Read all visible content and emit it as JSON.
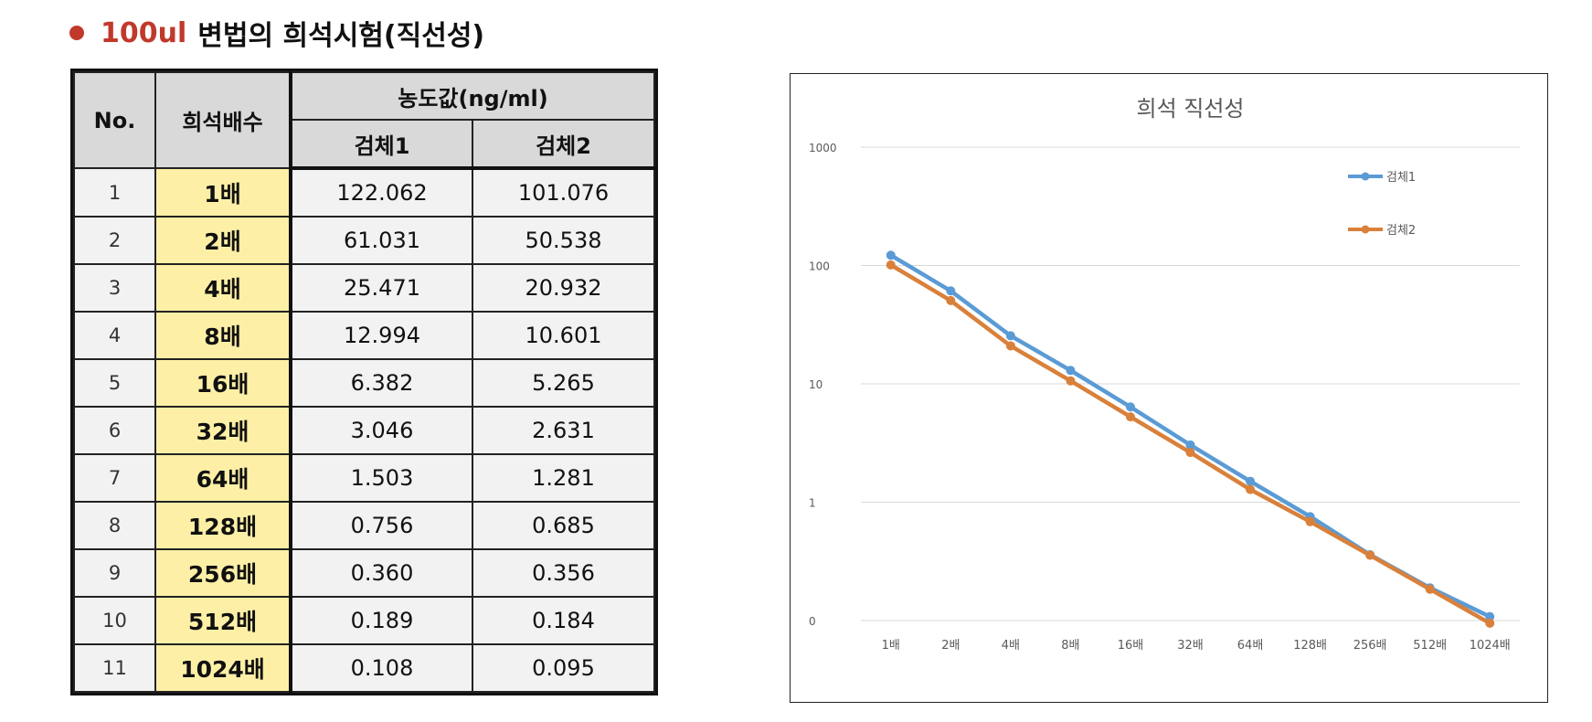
{
  "heading": {
    "highlight": "100ul",
    "rest": "변법의 희석시험(직선성)"
  },
  "table": {
    "col_no": "No.",
    "col_dilution": "희석배수",
    "col_conc": "농도값(ng/ml)",
    "col_s1": "검체1",
    "col_s2": "검체2",
    "rows": [
      {
        "no": "1",
        "dilution": "1배",
        "s1": "122.062",
        "s2": "101.076"
      },
      {
        "no": "2",
        "dilution": "2배",
        "s1": "61.031",
        "s2": "50.538"
      },
      {
        "no": "3",
        "dilution": "4배",
        "s1": "25.471",
        "s2": "20.932"
      },
      {
        "no": "4",
        "dilution": "8배",
        "s1": "12.994",
        "s2": "10.601"
      },
      {
        "no": "5",
        "dilution": "16배",
        "s1": "6.382",
        "s2": "5.265"
      },
      {
        "no": "6",
        "dilution": "32배",
        "s1": "3.046",
        "s2": "2.631"
      },
      {
        "no": "7",
        "dilution": "64배",
        "s1": "1.503",
        "s2": "1.281"
      },
      {
        "no": "8",
        "dilution": "128배",
        "s1": "0.756",
        "s2": "0.685"
      },
      {
        "no": "9",
        "dilution": "256배",
        "s1": "0.360",
        "s2": "0.356"
      },
      {
        "no": "10",
        "dilution": "512배",
        "s1": "0.189",
        "s2": "0.184"
      },
      {
        "no": "11",
        "dilution": "1024배",
        "s1": "0.108",
        "s2": "0.095"
      }
    ]
  },
  "colors": {
    "accent": "#c0392b",
    "series1": "#5b9bd5",
    "series2": "#d9803a",
    "header_bg": "#d9d9d9",
    "highlight_bg": "#fdf0a6"
  },
  "chart_data": {
    "type": "line",
    "title": "희석 직선성",
    "y_scale": "log",
    "ylim": [
      0.1,
      1000
    ],
    "y_ticks": [
      {
        "value": 1000,
        "label": "1000"
      },
      {
        "value": 100,
        "label": "100"
      },
      {
        "value": 10,
        "label": "10"
      },
      {
        "value": 1,
        "label": "1"
      },
      {
        "value": 0.1,
        "label": "0"
      }
    ],
    "grid": true,
    "legend_position": "top-right",
    "categories": [
      "1배",
      "2배",
      "4배",
      "8배",
      "16배",
      "32배",
      "64배",
      "128배",
      "256배",
      "512배",
      "1024배"
    ],
    "series": [
      {
        "name": "검체1",
        "color": "#5b9bd5",
        "values": [
          122.062,
          61.031,
          25.471,
          12.994,
          6.382,
          3.046,
          1.503,
          0.756,
          0.36,
          0.189,
          0.108
        ]
      },
      {
        "name": "검체2",
        "color": "#d9803a",
        "values": [
          101.076,
          50.538,
          20.932,
          10.601,
          5.265,
          2.631,
          1.281,
          0.685,
          0.356,
          0.184,
          0.095
        ]
      }
    ]
  }
}
